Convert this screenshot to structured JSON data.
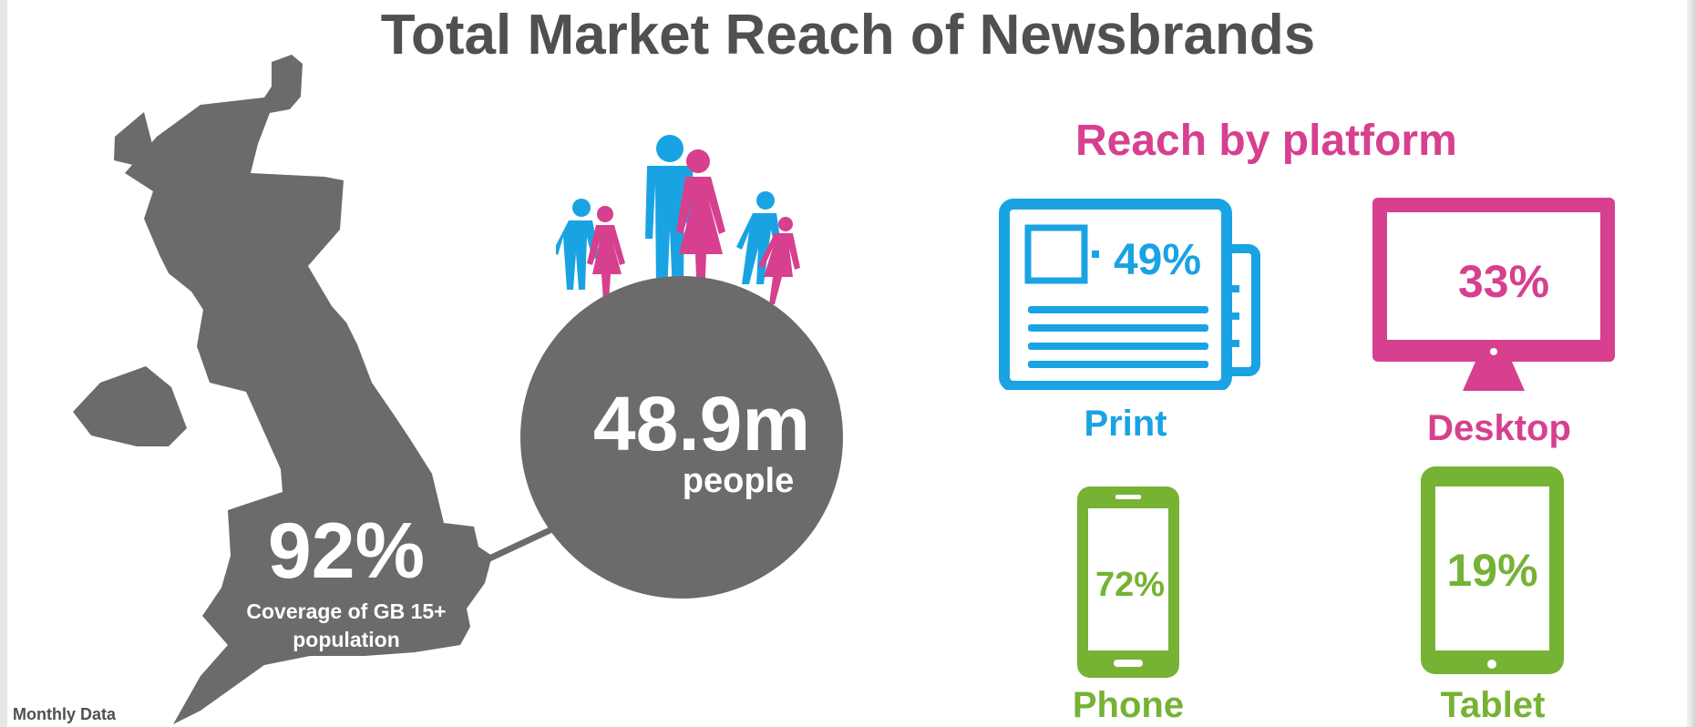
{
  "title": "Total Market Reach of Newsbrands",
  "coverage": {
    "percent": "92%",
    "description": "Coverage of GB 15+ population"
  },
  "audience": {
    "count": "48.9m",
    "unit": "people"
  },
  "platforms": {
    "heading": "Reach by platform",
    "print": {
      "label": "Print",
      "value": "49%",
      "icon": "newspaper-icon"
    },
    "desktop": {
      "label": "Desktop",
      "value": "33%",
      "icon": "monitor-icon"
    },
    "phone": {
      "label": "Phone",
      "value": "72%",
      "icon": "phone-icon"
    },
    "tablet": {
      "label": "Tablet",
      "value": "19%",
      "icon": "tablet-icon"
    }
  },
  "footnote": "Monthly Data",
  "colors": {
    "title_grey": "#505050",
    "map_grey": "#6b6b6b",
    "print_blue": "#1aa3e3",
    "desktop_pink": "#d6408e",
    "mobile_green": "#76b234"
  }
}
